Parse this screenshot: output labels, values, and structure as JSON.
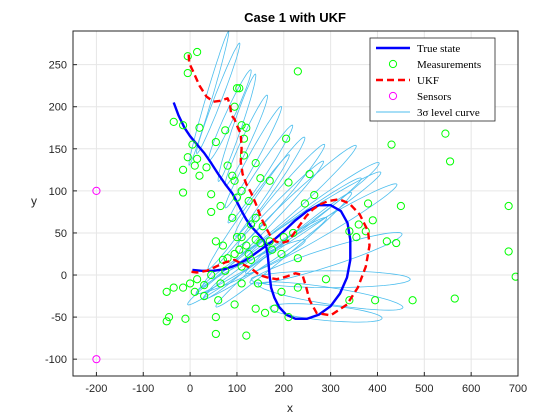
{
  "chart_data": {
    "type": "line",
    "title": "Case 1 with UKF",
    "xlabel": "x",
    "ylabel": "y",
    "xlim": [
      -250,
      700
    ],
    "ylim": [
      -120,
      290
    ],
    "xticks": [
      -200,
      -100,
      0,
      100,
      200,
      300,
      400,
      500,
      600,
      700
    ],
    "yticks": [
      -100,
      -50,
      0,
      50,
      100,
      150,
      200,
      250
    ],
    "grid": true,
    "legend_position": "top-right",
    "colors": {
      "true_state": "#0000ff",
      "measurements": "#00ff00",
      "ukf": "#ff0000",
      "sensors": "#ff00ff",
      "level_curve": "#4dbeee"
    },
    "series": [
      {
        "name": "True state",
        "kind": "line",
        "points": [
          [
            -35,
            205
          ],
          [
            -25,
            190
          ],
          [
            -12,
            175
          ],
          [
            0,
            165
          ],
          [
            15,
            155
          ],
          [
            30,
            145
          ],
          [
            45,
            133
          ],
          [
            60,
            120
          ],
          [
            75,
            108
          ],
          [
            90,
            97
          ],
          [
            100,
            87
          ],
          [
            110,
            76
          ],
          [
            120,
            66
          ],
          [
            130,
            58
          ],
          [
            140,
            52
          ],
          [
            150,
            46
          ],
          [
            158,
            40
          ],
          [
            163,
            32
          ],
          [
            166,
            22
          ],
          [
            168,
            10
          ],
          [
            170,
            -2
          ],
          [
            173,
            -15
          ],
          [
            180,
            -27
          ],
          [
            190,
            -38
          ],
          [
            205,
            -47
          ],
          [
            225,
            -52
          ],
          [
            250,
            -52
          ],
          [
            275,
            -47
          ],
          [
            300,
            -37
          ],
          [
            320,
            -22
          ],
          [
            335,
            -3
          ],
          [
            342,
            18
          ],
          [
            342,
            42
          ],
          [
            336,
            62
          ],
          [
            322,
            76
          ],
          [
            300,
            83
          ],
          [
            275,
            83
          ],
          [
            250,
            76
          ],
          [
            225,
            65
          ],
          [
            200,
            52
          ],
          [
            175,
            40
          ],
          [
            150,
            30
          ],
          [
            125,
            20
          ],
          [
            100,
            12
          ],
          [
            75,
            7
          ],
          [
            50,
            5
          ],
          [
            25,
            5
          ],
          [
            5,
            6
          ]
        ]
      },
      {
        "name": "Measurements",
        "kind": "scatter",
        "points": [
          [
            -5,
            260
          ],
          [
            15,
            265
          ],
          [
            -5,
            240
          ],
          [
            230,
            242
          ],
          [
            100,
            222
          ],
          [
            105,
            222
          ],
          [
            95,
            200
          ],
          [
            -35,
            182
          ],
          [
            -15,
            178
          ],
          [
            20,
            175
          ],
          [
            110,
            178
          ],
          [
            120,
            175
          ],
          [
            115,
            162
          ],
          [
            205,
            162
          ],
          [
            75,
            172
          ],
          [
            55,
            158
          ],
          [
            5,
            155
          ],
          [
            -5,
            140
          ],
          [
            15,
            138
          ],
          [
            10,
            130
          ],
          [
            35,
            128
          ],
          [
            -15,
            125
          ],
          [
            20,
            118
          ],
          [
            80,
            130
          ],
          [
            90,
            118
          ],
          [
            140,
            133
          ],
          [
            115,
            142
          ],
          [
            150,
            115
          ],
          [
            210,
            110
          ],
          [
            170,
            112
          ],
          [
            255,
            120
          ],
          [
            265,
            95
          ],
          [
            95,
            112
          ],
          [
            -15,
            98
          ],
          [
            45,
            96
          ],
          [
            110,
            100
          ],
          [
            100,
            92
          ],
          [
            65,
            82
          ],
          [
            45,
            75
          ],
          [
            125,
            88
          ],
          [
            90,
            68
          ],
          [
            140,
            68
          ],
          [
            245,
            85
          ],
          [
            380,
            85
          ],
          [
            450,
            82
          ],
          [
            390,
            65
          ],
          [
            360,
            60
          ],
          [
            340,
            52
          ],
          [
            220,
            50
          ],
          [
            200,
            45
          ],
          [
            170,
            40
          ],
          [
            140,
            42
          ],
          [
            110,
            45
          ],
          [
            100,
            45
          ],
          [
            120,
            35
          ],
          [
            150,
            38
          ],
          [
            175,
            30
          ],
          [
            195,
            25
          ],
          [
            230,
            20
          ],
          [
            105,
            30
          ],
          [
            125,
            25
          ],
          [
            95,
            25
          ],
          [
            80,
            20
          ],
          [
            70,
            18
          ],
          [
            55,
            40
          ],
          [
            70,
            35
          ],
          [
            130,
            18
          ],
          [
            110,
            10
          ],
          [
            75,
            5
          ],
          [
            45,
            0
          ],
          [
            15,
            -5
          ],
          [
            0,
            -10
          ],
          [
            30,
            -12
          ],
          [
            65,
            -10
          ],
          [
            110,
            -10
          ],
          [
            145,
            -10
          ],
          [
            195,
            -20
          ],
          [
            230,
            -15
          ],
          [
            290,
            -5
          ],
          [
            340,
            -30
          ],
          [
            395,
            -30
          ],
          [
            475,
            -30
          ],
          [
            565,
            -28
          ],
          [
            180,
            -40
          ],
          [
            160,
            -45
          ],
          [
            140,
            -40
          ],
          [
            95,
            -35
          ],
          [
            60,
            -30
          ],
          [
            -50,
            -20
          ],
          [
            -35,
            -15
          ],
          [
            -15,
            -15
          ],
          [
            10,
            -20
          ],
          [
            30,
            -25
          ],
          [
            -45,
            -50
          ],
          [
            -10,
            -52
          ],
          [
            -50,
            -55
          ],
          [
            55,
            -50
          ],
          [
            55,
            -70
          ],
          [
            120,
            -72
          ],
          [
            210,
            -50
          ],
          [
            430,
            155
          ],
          [
            545,
            168
          ],
          [
            555,
            135
          ],
          [
            680,
            82
          ],
          [
            680,
            28
          ],
          [
            695,
            -2
          ],
          [
            420,
            40
          ],
          [
            440,
            38
          ],
          [
            130,
            60
          ],
          [
            155,
            58
          ],
          [
            375,
            52
          ],
          [
            355,
            45
          ]
        ]
      },
      {
        "name": "UKF",
        "kind": "line",
        "points": [
          [
            -3,
            262
          ],
          [
            -2,
            252
          ],
          [
            8,
            240
          ],
          [
            20,
            225
          ],
          [
            35,
            212
          ],
          [
            50,
            206
          ],
          [
            65,
            207
          ],
          [
            80,
            210
          ],
          [
            85,
            203
          ],
          [
            88,
            190
          ],
          [
            95,
            185
          ],
          [
            102,
            175
          ],
          [
            108,
            168
          ],
          [
            110,
            150
          ],
          [
            108,
            135
          ],
          [
            112,
            120
          ],
          [
            120,
            108
          ],
          [
            130,
            98
          ],
          [
            140,
            85
          ],
          [
            150,
            70
          ],
          [
            160,
            58
          ],
          [
            170,
            48
          ],
          [
            182,
            40
          ],
          [
            195,
            38
          ],
          [
            208,
            40
          ],
          [
            220,
            48
          ],
          [
            235,
            60
          ],
          [
            248,
            70
          ],
          [
            262,
            78
          ],
          [
            278,
            84
          ],
          [
            295,
            88
          ],
          [
            318,
            90
          ],
          [
            340,
            85
          ],
          [
            362,
            72
          ],
          [
            380,
            52
          ],
          [
            383,
            35
          ],
          [
            375,
            10
          ],
          [
            358,
            -15
          ],
          [
            335,
            -35
          ],
          [
            300,
            -48
          ],
          [
            270,
            -45
          ],
          [
            255,
            -30
          ],
          [
            248,
            -15
          ],
          [
            240,
            0
          ],
          [
            225,
            2
          ],
          [
            205,
            -2
          ],
          [
            185,
            -5
          ],
          [
            165,
            -3
          ],
          [
            148,
            0
          ],
          [
            130,
            8
          ],
          [
            115,
            12
          ],
          [
            95,
            18
          ],
          [
            75,
            15
          ],
          [
            55,
            10
          ],
          [
            35,
            5
          ],
          [
            15,
            3
          ],
          [
            0,
            4
          ]
        ]
      },
      {
        "name": "Sensors",
        "kind": "scatter",
        "points": [
          [
            -200,
            100
          ],
          [
            -200,
            -100
          ]
        ]
      }
    ],
    "level_curves": {
      "name": "3σ level curve",
      "ellipses": [
        {
          "center": [
            40,
            210
          ],
          "semi_major": 90,
          "semi_minor": 6,
          "angle_deg": 62
        },
        {
          "center": [
            60,
            210
          ],
          "semi_major": 80,
          "semi_minor": 7,
          "angle_deg": 55
        },
        {
          "center": [
            85,
            190
          ],
          "semi_major": 70,
          "semi_minor": 8,
          "angle_deg": 50
        },
        {
          "center": [
            100,
            175
          ],
          "semi_major": 75,
          "semi_minor": 8,
          "angle_deg": 58
        },
        {
          "center": [
            120,
            160
          ],
          "semi_major": 70,
          "semi_minor": 8,
          "angle_deg": 50
        },
        {
          "center": [
            135,
            140
          ],
          "semi_major": 85,
          "semi_minor": 8,
          "angle_deg": 45
        },
        {
          "center": [
            150,
            120
          ],
          "semi_major": 90,
          "semi_minor": 8,
          "angle_deg": 40
        },
        {
          "center": [
            170,
            105
          ],
          "semi_major": 95,
          "semi_minor": 9,
          "angle_deg": 38
        },
        {
          "center": [
            195,
            95
          ],
          "semi_major": 110,
          "semi_minor": 9,
          "angle_deg": 33
        },
        {
          "center": [
            230,
            90
          ],
          "semi_major": 140,
          "semi_minor": 10,
          "angle_deg": 27
        },
        {
          "center": [
            260,
            75
          ],
          "semi_major": 155,
          "semi_minor": 10,
          "angle_deg": 22
        },
        {
          "center": [
            280,
            55
          ],
          "semi_major": 170,
          "semi_minor": 10,
          "angle_deg": 18
        },
        {
          "center": [
            290,
            20
          ],
          "semi_major": 165,
          "semi_minor": 11,
          "angle_deg": 10
        },
        {
          "center": [
            300,
            -5
          ],
          "semi_major": 170,
          "semi_minor": 10,
          "angle_deg": 0
        },
        {
          "center": [
            300,
            -25
          ],
          "semi_major": 155,
          "semi_minor": 10,
          "angle_deg": -5
        },
        {
          "center": [
            290,
            -45
          ],
          "semi_major": 120,
          "semi_minor": 9,
          "angle_deg": -3
        },
        {
          "center": [
            200,
            30
          ],
          "semi_major": 160,
          "semi_minor": 9,
          "angle_deg": 25
        },
        {
          "center": [
            160,
            20
          ],
          "semi_major": 140,
          "semi_minor": 8,
          "angle_deg": 20
        },
        {
          "center": [
            130,
            10
          ],
          "semi_major": 120,
          "semi_minor": 8,
          "angle_deg": 15
        },
        {
          "center": [
            100,
            5
          ],
          "semi_major": 80,
          "semi_minor": 7,
          "angle_deg": 25
        },
        {
          "center": [
            180,
            40
          ],
          "semi_major": 200,
          "semi_minor": 10,
          "angle_deg": 22
        },
        {
          "center": [
            210,
            50
          ],
          "semi_major": 210,
          "semi_minor": 11,
          "angle_deg": 20
        },
        {
          "center": [
            155,
            60
          ],
          "semi_major": 150,
          "semi_minor": 9,
          "angle_deg": 30
        },
        {
          "center": [
            125,
            75
          ],
          "semi_major": 110,
          "semi_minor": 8,
          "angle_deg": 38
        }
      ]
    },
    "legend": [
      {
        "label": "True state",
        "style": "line-solid"
      },
      {
        "label": "Measurements",
        "style": "marker-circle"
      },
      {
        "label": "UKF",
        "style": "line-dashed"
      },
      {
        "label": "Sensors",
        "style": "marker-circle"
      },
      {
        "label": "3σ level curve",
        "style": "line-thin"
      }
    ]
  }
}
